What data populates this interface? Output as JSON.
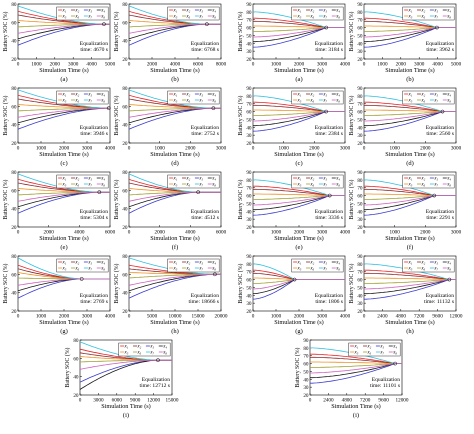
{
  "figure": {
    "ylabel": "Battery SOC (%)",
    "xlabel": "Simulation Time (s)",
    "eq_prefix": "Equalization",
    "eq_time_word": "time:",
    "legend_left": [
      [
        "x₁",
        "x₂",
        "x₃",
        "x₄"
      ],
      [
        "x₅",
        "x₆",
        "x₇",
        "x₈"
      ]
    ],
    "legend_right": [
      [
        "x₁",
        "x₂",
        "x₃",
        "x₄"
      ],
      [
        "x₅",
        "x₆",
        "x₇",
        "x₈"
      ]
    ],
    "series_colors": {
      "x1": "#e8262a",
      "x2": "#8b2a2a",
      "x3": "#3a3ad0",
      "x4": "#1a1a1a",
      "x5": "#f09020",
      "x6": "#a0a030",
      "x7": "#30c0e0",
      "x8": "#d060c0"
    }
  },
  "chart_data": [
    {
      "type": "line",
      "caption": "(a)",
      "eq_label": "4670 s",
      "eq_time": 4670,
      "xlim": [
        0,
        5000
      ],
      "ylim": [
        20,
        80
      ],
      "xticks": [
        0,
        1000,
        2000,
        3000,
        4000,
        5000
      ],
      "yticks": [
        20,
        40,
        60,
        80
      ],
      "final_soc": 58,
      "series": [
        {
          "name": "x₁",
          "start": 72
        },
        {
          "name": "x₂",
          "start": 68
        },
        {
          "name": "x₃",
          "start": 35
        },
        {
          "name": "x₄",
          "start": 42
        },
        {
          "name": "x₅",
          "start": 62
        },
        {
          "name": "x₆",
          "start": 55
        },
        {
          "name": "x₇",
          "start": 78
        },
        {
          "name": "x₈",
          "start": 48
        }
      ]
    },
    {
      "type": "line",
      "caption": "(b)",
      "eq_label": "6768 s",
      "eq_time": 6768,
      "xlim": [
        0,
        8000
      ],
      "ylim": [
        20,
        80
      ],
      "xticks": [
        0,
        2000,
        4000,
        6000,
        8000
      ],
      "yticks": [
        20,
        40,
        60,
        80
      ],
      "final_soc": 58,
      "series": [
        {
          "name": "x₁",
          "start": 72
        },
        {
          "name": "x₂",
          "start": 68
        },
        {
          "name": "x₃",
          "start": 35
        },
        {
          "name": "x₄",
          "start": 42
        },
        {
          "name": "x₅",
          "start": 62
        },
        {
          "name": "x₆",
          "start": 55
        },
        {
          "name": "x₇",
          "start": 78
        },
        {
          "name": "x₈",
          "start": 48
        }
      ]
    },
    {
      "type": "line",
      "caption": "(a)",
      "eq_label": "3184 s",
      "eq_time": 3184,
      "xlim": [
        0,
        4000
      ],
      "ylim": [
        20,
        90
      ],
      "xticks": [
        0,
        1000,
        2000,
        3000,
        4000
      ],
      "yticks": [
        20,
        30,
        40,
        50,
        60,
        70,
        80,
        90
      ],
      "final_soc": 60,
      "series": [
        {
          "name": "x₁",
          "start": 72
        },
        {
          "name": "x₂",
          "start": 68
        },
        {
          "name": "x₃",
          "start": 35
        },
        {
          "name": "x₄",
          "start": 42
        },
        {
          "name": "x₅",
          "start": 62
        },
        {
          "name": "x₆",
          "start": 55
        },
        {
          "name": "x₇",
          "start": 80
        },
        {
          "name": "x₈",
          "start": 48
        }
      ]
    },
    {
      "type": "line",
      "caption": "(b)",
      "eq_label": "3962 s",
      "eq_time": 3962,
      "xlim": [
        0,
        5000
      ],
      "ylim": [
        20,
        90
      ],
      "xticks": [
        0,
        1000,
        2000,
        3000,
        4000,
        5000
      ],
      "yticks": [
        20,
        30,
        40,
        50,
        60,
        70,
        80,
        90
      ],
      "final_soc": 60,
      "series": [
        {
          "name": "x₁",
          "start": 72
        },
        {
          "name": "x₂",
          "start": 68
        },
        {
          "name": "x₃",
          "start": 35
        },
        {
          "name": "x₄",
          "start": 42
        },
        {
          "name": "x₅",
          "start": 62
        },
        {
          "name": "x₆",
          "start": 55
        },
        {
          "name": "x₇",
          "start": 80
        },
        {
          "name": "x₈",
          "start": 48
        }
      ]
    },
    {
      "type": "line",
      "caption": "(c)",
      "eq_label": "3946 s",
      "eq_time": 3946,
      "xlim": [
        0,
        4000
      ],
      "ylim": [
        20,
        80
      ],
      "xticks": [
        0,
        1000,
        2000,
        3000,
        4000
      ],
      "yticks": [
        20,
        40,
        60,
        80
      ],
      "final_soc": 58,
      "series": [
        {
          "name": "x₁",
          "start": 72
        },
        {
          "name": "x₂",
          "start": 68
        },
        {
          "name": "x₃",
          "start": 35
        },
        {
          "name": "x₄",
          "start": 42
        },
        {
          "name": "x₅",
          "start": 62
        },
        {
          "name": "x₆",
          "start": 55
        },
        {
          "name": "x₇",
          "start": 78
        },
        {
          "name": "x₈",
          "start": 48
        }
      ]
    },
    {
      "type": "line",
      "caption": "(d)",
      "eq_label": "2752 s",
      "eq_time": 2752,
      "xlim": [
        0,
        3000
      ],
      "ylim": [
        20,
        80
      ],
      "xticks": [
        0,
        1000,
        2000,
        3000
      ],
      "yticks": [
        20,
        40,
        60,
        80
      ],
      "final_soc": 58,
      "series": [
        {
          "name": "x₁",
          "start": 72
        },
        {
          "name": "x₂",
          "start": 68
        },
        {
          "name": "x₃",
          "start": 35
        },
        {
          "name": "x₄",
          "start": 42
        },
        {
          "name": "x₅",
          "start": 62
        },
        {
          "name": "x₆",
          "start": 55
        },
        {
          "name": "x₇",
          "start": 78
        },
        {
          "name": "x₈",
          "start": 48
        }
      ]
    },
    {
      "type": "line",
      "caption": "(c)",
      "eq_label": "2384 s",
      "eq_time": 2384,
      "xlim": [
        0,
        3000
      ],
      "ylim": [
        20,
        90
      ],
      "xticks": [
        0,
        1000,
        2000,
        3000
      ],
      "yticks": [
        20,
        30,
        40,
        50,
        60,
        70,
        80,
        90
      ],
      "final_soc": 60,
      "series": [
        {
          "name": "x₁",
          "start": 72
        },
        {
          "name": "x₂",
          "start": 68
        },
        {
          "name": "x₃",
          "start": 35
        },
        {
          "name": "x₄",
          "start": 42
        },
        {
          "name": "x₅",
          "start": 62
        },
        {
          "name": "x₆",
          "start": 55
        },
        {
          "name": "x₇",
          "start": 80
        },
        {
          "name": "x₈",
          "start": 48
        }
      ]
    },
    {
      "type": "line",
      "caption": "(d)",
      "eq_label": "2560 s",
      "eq_time": 2560,
      "xlim": [
        0,
        3000
      ],
      "ylim": [
        20,
        90
      ],
      "xticks": [
        0,
        1000,
        2000,
        3000
      ],
      "yticks": [
        20,
        30,
        40,
        50,
        60,
        70,
        80,
        90
      ],
      "final_soc": 60,
      "series": [
        {
          "name": "x₁",
          "start": 72
        },
        {
          "name": "x₂",
          "start": 68
        },
        {
          "name": "x₃",
          "start": 35
        },
        {
          "name": "x₄",
          "start": 42
        },
        {
          "name": "x₅",
          "start": 62
        },
        {
          "name": "x₆",
          "start": 55
        },
        {
          "name": "x₇",
          "start": 80
        },
        {
          "name": "x₈",
          "start": 48
        }
      ]
    },
    {
      "type": "line",
      "caption": "(e)",
      "eq_label": "5304 s",
      "eq_time": 5304,
      "xlim": [
        0,
        6000
      ],
      "ylim": [
        20,
        80
      ],
      "xticks": [
        0,
        2000,
        4000,
        6000
      ],
      "yticks": [
        20,
        40,
        60,
        80
      ],
      "final_soc": 58,
      "series": [
        {
          "name": "x₁",
          "start": 72
        },
        {
          "name": "x₂",
          "start": 68
        },
        {
          "name": "x₃",
          "start": 35
        },
        {
          "name": "x₄",
          "start": 42
        },
        {
          "name": "x₅",
          "start": 62
        },
        {
          "name": "x₆",
          "start": 55
        },
        {
          "name": "x₇",
          "start": 78
        },
        {
          "name": "x₈",
          "start": 48
        }
      ]
    },
    {
      "type": "line",
      "caption": "(f)",
      "eq_label": "4512 s",
      "eq_time": 4512,
      "xlim": [
        0,
        6000
      ],
      "ylim": [
        20,
        80
      ],
      "xticks": [
        0,
        2000,
        4000,
        6000
      ],
      "yticks": [
        20,
        40,
        60,
        80
      ],
      "final_soc": 58,
      "series": [
        {
          "name": "x₁",
          "start": 72
        },
        {
          "name": "x₂",
          "start": 68
        },
        {
          "name": "x₃",
          "start": 35
        },
        {
          "name": "x₄",
          "start": 42
        },
        {
          "name": "x₅",
          "start": 62
        },
        {
          "name": "x₆",
          "start": 55
        },
        {
          "name": "x₇",
          "start": 78
        },
        {
          "name": "x₈",
          "start": 48
        }
      ]
    },
    {
      "type": "line",
      "caption": "(e)",
      "eq_label": "3336 s",
      "eq_time": 3336,
      "xlim": [
        0,
        4000
      ],
      "ylim": [
        20,
        90
      ],
      "xticks": [
        0,
        1000,
        2000,
        3000,
        4000
      ],
      "yticks": [
        20,
        30,
        40,
        50,
        60,
        70,
        80,
        90
      ],
      "final_soc": 60,
      "series": [
        {
          "name": "x₁",
          "start": 72
        },
        {
          "name": "x₂",
          "start": 68
        },
        {
          "name": "x₃",
          "start": 35
        },
        {
          "name": "x₄",
          "start": 42
        },
        {
          "name": "x₅",
          "start": 62
        },
        {
          "name": "x₆",
          "start": 55
        },
        {
          "name": "x₇",
          "start": 80
        },
        {
          "name": "x₈",
          "start": 48
        }
      ]
    },
    {
      "type": "line",
      "caption": "(f)",
      "eq_label": "2291 s",
      "eq_time": 2291,
      "xlim": [
        0,
        3000
      ],
      "ylim": [
        20,
        90
      ],
      "xticks": [
        0,
        1000,
        2000,
        3000
      ],
      "yticks": [
        20,
        30,
        40,
        50,
        60,
        70,
        80,
        90
      ],
      "final_soc": 60,
      "series": [
        {
          "name": "x₁",
          "start": 72
        },
        {
          "name": "x₂",
          "start": 68
        },
        {
          "name": "x₃",
          "start": 35
        },
        {
          "name": "x₄",
          "start": 42
        },
        {
          "name": "x₅",
          "start": 62
        },
        {
          "name": "x₆",
          "start": 55
        },
        {
          "name": "x₇",
          "start": 80
        },
        {
          "name": "x₈",
          "start": 48
        }
      ]
    },
    {
      "type": "line",
      "caption": "(g)",
      "eq_label": "2769 s",
      "eq_time": 2769,
      "xlim": [
        0,
        4000
      ],
      "ylim": [
        20,
        80
      ],
      "xticks": [
        0,
        1000,
        2000,
        3000,
        4000
      ],
      "yticks": [
        20,
        40,
        60,
        80
      ],
      "final_soc": 55,
      "series": [
        {
          "name": "x₁",
          "start": 70
        },
        {
          "name": "x₂",
          "start": 66
        },
        {
          "name": "x₃",
          "start": 34
        },
        {
          "name": "x₄",
          "start": 42
        },
        {
          "name": "x₅",
          "start": 62
        },
        {
          "name": "x₆",
          "start": 56
        },
        {
          "name": "x₇",
          "start": 78
        },
        {
          "name": "x₈",
          "start": 48
        }
      ]
    },
    {
      "type": "line",
      "caption": "(h)",
      "eq_label": "18666 s",
      "eq_time": 18666,
      "xlim": [
        0,
        20000
      ],
      "ylim": [
        20,
        80
      ],
      "xticks": [
        0,
        5000,
        10000,
        15000,
        20000
      ],
      "yticks": [
        20,
        40,
        60,
        80
      ],
      "final_soc": 60,
      "series": [
        {
          "name": "x₁",
          "start": 70
        },
        {
          "name": "x₂",
          "start": 66
        },
        {
          "name": "x₃",
          "start": 34
        },
        {
          "name": "x₄",
          "start": 42
        },
        {
          "name": "x₅",
          "start": 62
        },
        {
          "name": "x₆",
          "start": 56
        },
        {
          "name": "x₇",
          "start": 78
        },
        {
          "name": "x₈",
          "start": 48
        }
      ]
    },
    {
      "type": "line",
      "caption": "(g)",
      "eq_label": "1806 s",
      "eq_time": 1806,
      "xlim": [
        0,
        4000
      ],
      "ylim": [
        20,
        90
      ],
      "xticks": [
        0,
        1000,
        2000,
        3000,
        4000
      ],
      "yticks": [
        20,
        30,
        40,
        50,
        60,
        70,
        80,
        90
      ],
      "final_soc": 60,
      "series": [
        {
          "name": "x₁",
          "start": 72
        },
        {
          "name": "x₂",
          "start": 68
        },
        {
          "name": "x₃",
          "start": 35
        },
        {
          "name": "x₄",
          "start": 42
        },
        {
          "name": "x₅",
          "start": 62
        },
        {
          "name": "x₆",
          "start": 55
        },
        {
          "name": "x₇",
          "start": 80
        },
        {
          "name": "x₈",
          "start": 48
        }
      ]
    },
    {
      "type": "line",
      "caption": "(h)",
      "eq_label": "11132 s",
      "eq_time": 11132,
      "xlim": [
        0,
        12000
      ],
      "ylim": [
        20,
        90
      ],
      "xticks": [
        0,
        2400,
        4800,
        7200,
        9600,
        12000
      ],
      "yticks": [
        20,
        30,
        40,
        50,
        60,
        70,
        80,
        90
      ],
      "final_soc": 60,
      "series": [
        {
          "name": "x₁",
          "start": 72
        },
        {
          "name": "x₂",
          "start": 68
        },
        {
          "name": "x₃",
          "start": 35
        },
        {
          "name": "x₄",
          "start": 42
        },
        {
          "name": "x₅",
          "start": 62
        },
        {
          "name": "x₆",
          "start": 55
        },
        {
          "name": "x₇",
          "start": 80
        },
        {
          "name": "x₈",
          "start": 48
        }
      ]
    },
    {
      "type": "line",
      "caption": "(i)",
      "eq_label": "12712 s",
      "eq_time": 12712,
      "xlim": [
        0,
        15000
      ],
      "ylim": [
        20,
        80
      ],
      "xticks": [
        0,
        3000,
        6000,
        9000,
        12000,
        15000
      ],
      "yticks": [
        20,
        40,
        60,
        80
      ],
      "final_soc": 58,
      "series": [
        {
          "name": "x₁",
          "start": 70
        },
        {
          "name": "x₂",
          "start": 66
        },
        {
          "name": "x₃",
          "start": 34
        },
        {
          "name": "x₄",
          "start": 26
        },
        {
          "name": "x₅",
          "start": 62
        },
        {
          "name": "x₆",
          "start": 56
        },
        {
          "name": "x₇",
          "start": 78
        },
        {
          "name": "x₈",
          "start": 48
        }
      ]
    },
    {
      "type": "line",
      "caption": "(i)",
      "eq_label": "11101 s",
      "eq_time": 11101,
      "xlim": [
        0,
        12000
      ],
      "ylim": [
        20,
        90
      ],
      "xticks": [
        0,
        2400,
        4800,
        7200,
        9600,
        12000
      ],
      "yticks": [
        20,
        30,
        40,
        50,
        60,
        70,
        80,
        90
      ],
      "final_soc": 60,
      "series": [
        {
          "name": "x₁",
          "start": 72
        },
        {
          "name": "x₂",
          "start": 68
        },
        {
          "name": "x₃",
          "start": 35
        },
        {
          "name": "x₄",
          "start": 42
        },
        {
          "name": "x₅",
          "start": 62
        },
        {
          "name": "x₆",
          "start": 55
        },
        {
          "name": "x₇",
          "start": 80
        },
        {
          "name": "x₈",
          "start": 48
        }
      ]
    }
  ]
}
